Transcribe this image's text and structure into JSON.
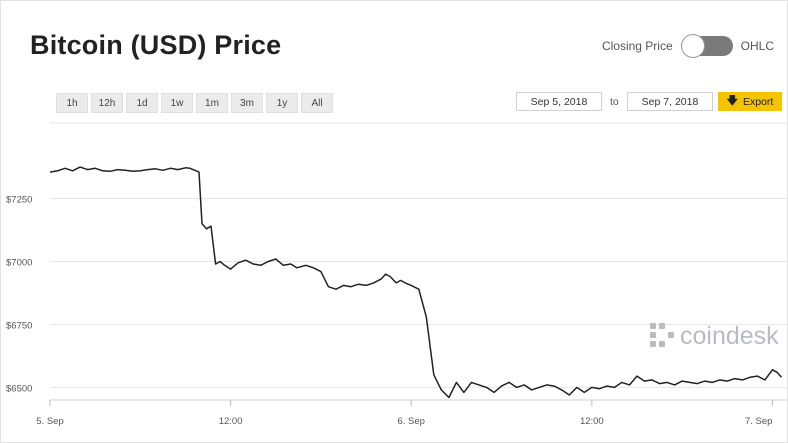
{
  "header": {
    "title": "Bitcoin (USD) Price",
    "toggle_left_label": "Closing Price",
    "toggle_right_label": "OHLC"
  },
  "range_buttons": [
    "1h",
    "12h",
    "1d",
    "1w",
    "1m",
    "3m",
    "1y",
    "All"
  ],
  "date_range": {
    "from": "Sep 5, 2018",
    "to_label": "to",
    "to": "Sep 7, 2018"
  },
  "export": {
    "label": "Export",
    "icon": "download-arrow-icon"
  },
  "watermark": {
    "text": "coindesk"
  },
  "colors": {
    "line": "#222222",
    "grid": "#e6e6e6",
    "export_bg": "#f5c400",
    "toggle_bg": "#7a7a7a"
  },
  "chart_data": {
    "type": "line",
    "title": "",
    "xlabel": "",
    "ylabel": "",
    "grid": true,
    "ylim": [
      6450,
      7550
    ],
    "yticks": [
      {
        "value": 6500,
        "label": "$6500"
      },
      {
        "value": 6750,
        "label": "$6750"
      },
      {
        "value": 7000,
        "label": "$7000"
      },
      {
        "value": 7250,
        "label": "$7250"
      }
    ],
    "xticks": [
      {
        "x": 0,
        "label": "5. Sep"
      },
      {
        "x": 12,
        "label": "12:00"
      },
      {
        "x": 24,
        "label": "6. Sep"
      },
      {
        "x": 36,
        "label": "12:00"
      },
      {
        "x": 48,
        "label": "7. Sep"
      }
    ],
    "xlim": [
      0,
      48.9
    ],
    "series": [
      {
        "x": [
          0,
          0.5,
          1,
          1.5,
          2,
          2.5,
          3,
          3.5,
          4,
          4.5,
          5,
          5.5,
          6,
          6.5,
          7,
          7.5,
          8,
          8.5,
          9,
          9.3,
          9.5,
          9.9,
          10.1,
          10.4,
          10.7,
          11,
          11.3,
          11.6,
          12,
          12.5,
          13,
          13.5,
          14,
          14.5,
          15,
          15.5,
          16,
          16.4,
          17,
          17.5,
          18,
          18.5,
          19,
          19.5,
          20,
          20.5,
          21,
          21.5,
          22,
          22.3,
          22.6,
          23,
          23.3,
          23.6,
          24,
          24.5,
          25,
          25.5,
          26,
          26.5,
          27,
          27.5,
          28,
          28.5,
          29,
          29.5,
          30,
          30.5,
          31,
          31.5,
          32,
          32.5,
          33,
          33.5,
          34,
          34.5,
          35,
          35.5,
          36,
          36.5,
          37,
          37.5,
          38,
          38.5,
          39,
          39.5,
          40,
          40.5,
          41,
          41.5,
          42,
          42.5,
          43,
          43.5,
          44,
          44.5,
          45,
          45.5,
          46,
          46.5,
          47,
          47.5,
          48,
          48.3,
          48.6
        ],
        "values": [
          7355,
          7360,
          7370,
          7360,
          7375,
          7365,
          7370,
          7360,
          7358,
          7365,
          7362,
          7358,
          7360,
          7365,
          7368,
          7362,
          7370,
          7365,
          7372,
          7370,
          7365,
          7355,
          7150,
          7130,
          7140,
          6990,
          7000,
          6985,
          6970,
          6995,
          7005,
          6990,
          6985,
          7000,
          7010,
          6985,
          6990,
          6975,
          6985,
          6975,
          6960,
          6900,
          6890,
          6905,
          6900,
          6910,
          6905,
          6915,
          6930,
          6950,
          6940,
          6915,
          6925,
          6915,
          6905,
          6890,
          6780,
          6550,
          6490,
          6460,
          6520,
          6480,
          6520,
          6510,
          6500,
          6480,
          6505,
          6520,
          6500,
          6510,
          6490,
          6500,
          6510,
          6505,
          6490,
          6470,
          6500,
          6480,
          6500,
          6495,
          6505,
          6500,
          6520,
          6510,
          6545,
          6525,
          6530,
          6515,
          6520,
          6510,
          6525,
          6520,
          6515,
          6525,
          6520,
          6530,
          6525,
          6535,
          6530,
          6540,
          6545,
          6530,
          6570,
          6560,
          6540
        ]
      }
    ]
  }
}
